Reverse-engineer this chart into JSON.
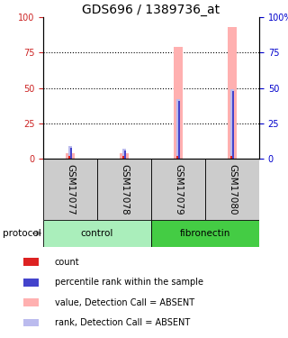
{
  "title": "GDS696 / 1389736_at",
  "samples": [
    "GSM17077",
    "GSM17078",
    "GSM17079",
    "GSM17080"
  ],
  "value_bars": [
    4,
    4,
    79,
    93
  ],
  "rank_bars": [
    9,
    7,
    42,
    49
  ],
  "count_bars": [
    2,
    2,
    2,
    2
  ],
  "percentile_bars": [
    8,
    6,
    41,
    48
  ],
  "protocol_groups": [
    {
      "label": "control",
      "indices": [
        0,
        1
      ]
    },
    {
      "label": "fibronectin",
      "indices": [
        2,
        3
      ]
    }
  ],
  "ylim": [
    0,
    100
  ],
  "yticks": [
    0,
    25,
    50,
    75,
    100
  ],
  "bar_color_pink": "#FFB0B0",
  "bar_color_bluelavender": "#BBBBEE",
  "bar_color_red": "#DD2222",
  "bar_color_blue": "#4444CC",
  "left_axis_color": "#CC2222",
  "right_axis_color": "#0000CC",
  "sample_box_color": "#CCCCCC",
  "protocol_color_control": "#AAEEBB",
  "protocol_color_fibronectin": "#44CC44",
  "title_fontsize": 10,
  "tick_fontsize": 7,
  "label_fontsize": 7.5,
  "legend_fontsize": 7
}
